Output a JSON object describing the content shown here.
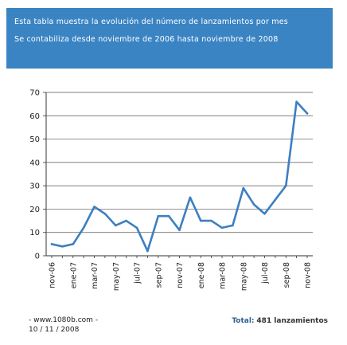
{
  "header": {
    "description": "Esta tabla muestra la evolución del número de lanzamientos por mes",
    "range": "Se contabiliza desde noviembre de 2006 hasta noviembre de 2008"
  },
  "footer": {
    "site": "- www.1080b.com -",
    "date": "10 / 11 / 2008",
    "total_label": "Total:",
    "total_value": "481 lanzamientos"
  },
  "colors": {
    "header_bg": "#3b84c4",
    "line": "#3d7fc1"
  },
  "chart_data": {
    "type": "line",
    "title": "",
    "xlabel": "",
    "ylabel": "",
    "ylim": [
      0,
      70
    ],
    "yticks": [
      0,
      10,
      20,
      30,
      40,
      50,
      60,
      70
    ],
    "grid": true,
    "x": [
      "nov-06",
      "dic-06",
      "ene-07",
      "feb-07",
      "mar-07",
      "abr-07",
      "may-07",
      "jun-07",
      "jul-07",
      "ago-07",
      "sep-07",
      "oct-07",
      "nov-07",
      "dic-07",
      "ene-08",
      "feb-08",
      "mar-08",
      "abr-08",
      "may-08",
      "jun-08",
      "jul-08",
      "ago-08",
      "sep-08",
      "oct-08",
      "nov-08"
    ],
    "xtick_labels": [
      "nov-06",
      "ene-07",
      "mar-07",
      "may-07",
      "jul-07",
      "sep-07",
      "nov-07",
      "ene-08",
      "mar-08",
      "may-08",
      "jul-08",
      "sep-08",
      "nov-08"
    ],
    "values": [
      5,
      4,
      5,
      12,
      21,
      18,
      13,
      15,
      12,
      2,
      17,
      17,
      11,
      25,
      15,
      15,
      12,
      13,
      29,
      22,
      18,
      24,
      30,
      66,
      61
    ]
  }
}
